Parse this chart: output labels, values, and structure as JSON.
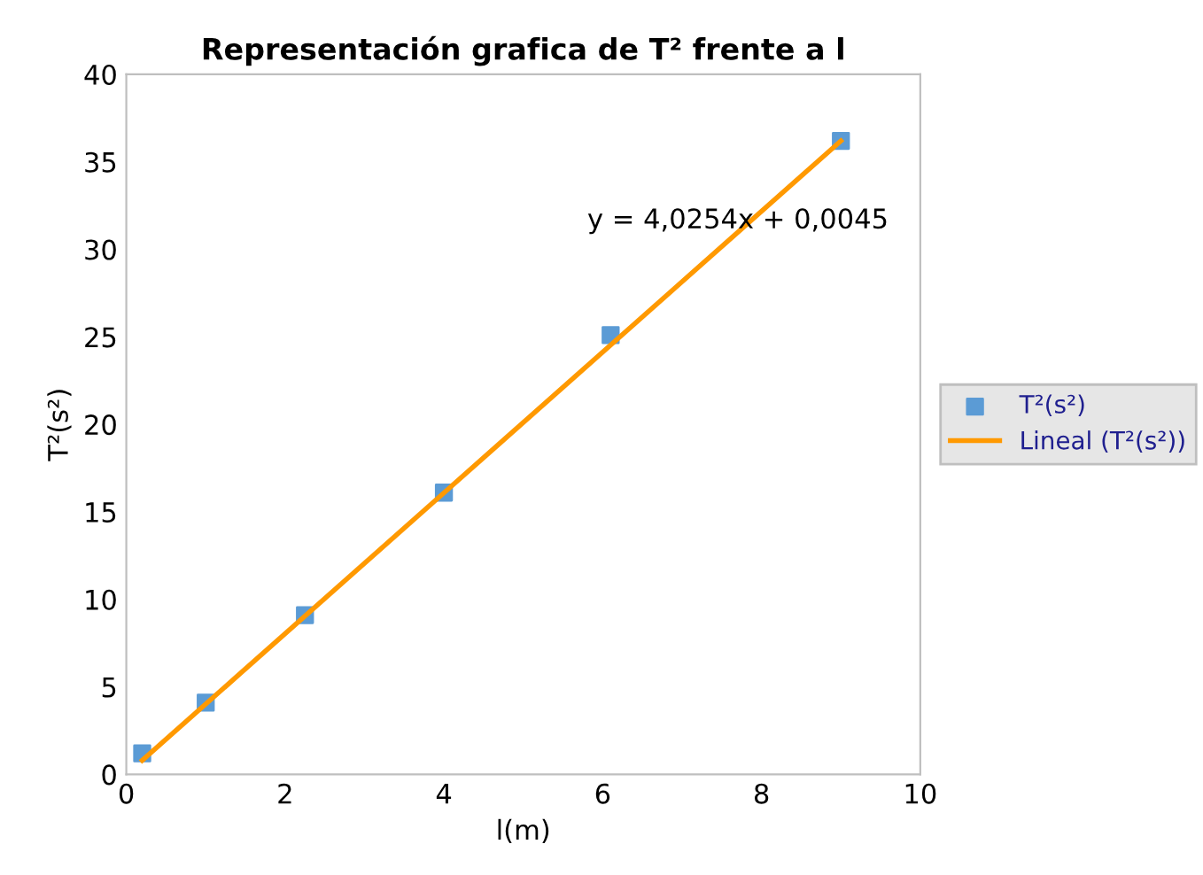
{
  "chart_data": {
    "type": "scatter",
    "title": "Representación grafica de T² frente a l",
    "xlabel": "l(m)",
    "ylabel": "T²(s²)",
    "series": [
      {
        "name": "T²(s²)",
        "color": "#5b9bd5",
        "marker": "square",
        "x": [
          0.2,
          1,
          2.25,
          4,
          6.1,
          9
        ],
        "values": [
          1.2,
          4.1,
          9.1,
          16.1,
          25.1,
          36.2
        ]
      },
      {
        "name": "Lineal (T²(s²))",
        "type": "line",
        "color": "#ff9900",
        "marker": "none",
        "x": [
          0.2,
          9
        ],
        "values": [
          0.8,
          36.2
        ]
      }
    ],
    "annotations": [
      "y = 4,0254x + 0,0045"
    ],
    "xlim": [
      0,
      10
    ],
    "ylim": [
      0,
      40
    ],
    "xticks": [
      0,
      2,
      4,
      6,
      8,
      10
    ],
    "yticks": [
      0,
      5,
      10,
      15,
      20,
      25,
      30,
      35,
      40
    ],
    "grid": false,
    "legend": "right"
  }
}
